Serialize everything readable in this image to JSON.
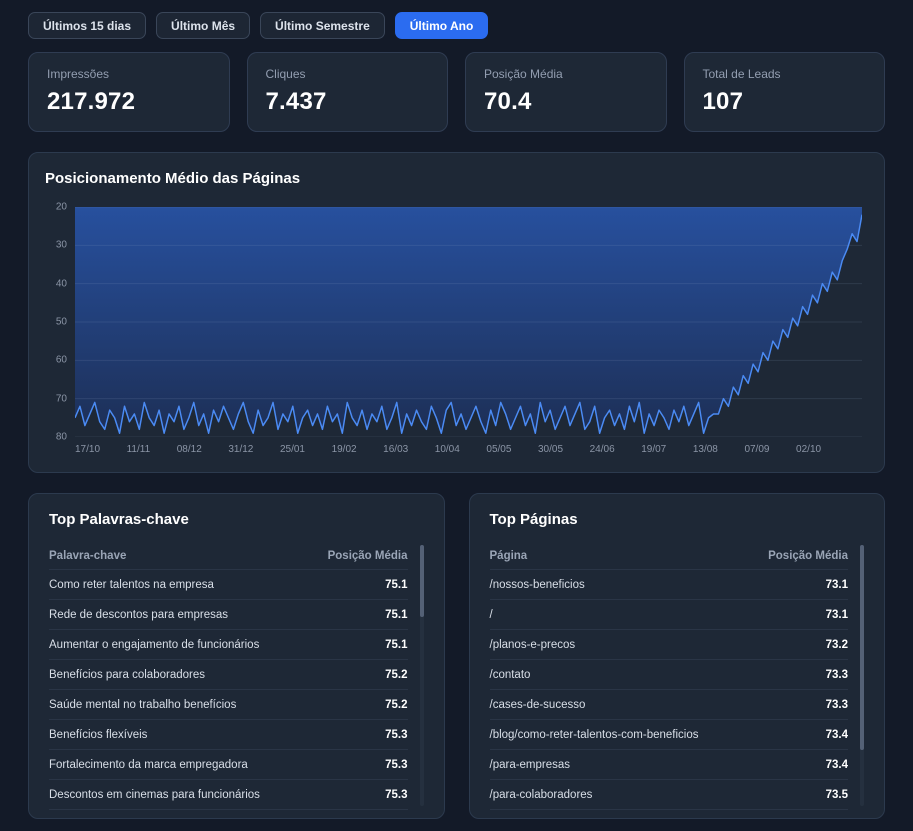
{
  "filters": {
    "items": [
      {
        "label": "Últimos 15 dias",
        "active": false
      },
      {
        "label": "Último Mês",
        "active": false
      },
      {
        "label": "Último Semestre",
        "active": false
      },
      {
        "label": "Último Ano",
        "active": true
      }
    ]
  },
  "stats": [
    {
      "label": "Impressões",
      "value": "217.972"
    },
    {
      "label": "Cliques",
      "value": "7.437"
    },
    {
      "label": "Posição Média",
      "value": "70.4"
    },
    {
      "label": "Total de Leads",
      "value": "107"
    }
  ],
  "chart_data": {
    "type": "area",
    "title": "Posicionamento Médio das Páginas",
    "y_inverted": true,
    "ylim": [
      20,
      80
    ],
    "y_ticks": [
      20,
      30,
      40,
      50,
      60,
      70,
      80
    ],
    "x_ticks": [
      "17/10",
      "11/11",
      "08/12",
      "31/12",
      "25/01",
      "19/02",
      "16/03",
      "10/04",
      "05/05",
      "30/05",
      "24/06",
      "19/07",
      "13/08",
      "07/09",
      "02/10"
    ],
    "grid": true,
    "line_color": "#4b8bf4",
    "fill_top_color": "#27509e",
    "fill_bottom_color": "#1d2f56",
    "values": [
      75,
      72,
      77,
      74,
      71,
      76,
      78,
      73,
      75,
      79,
      72,
      76,
      74,
      78,
      71,
      75,
      77,
      73,
      79,
      74,
      76,
      72,
      78,
      75,
      71,
      77,
      74,
      79,
      73,
      76,
      72,
      75,
      78,
      74,
      71,
      76,
      79,
      73,
      77,
      75,
      71,
      78,
      74,
      76,
      72,
      79,
      75,
      73,
      77,
      74,
      78,
      72,
      76,
      74,
      79,
      71,
      75,
      77,
      73,
      78,
      74,
      76,
      72,
      78,
      75,
      71,
      79,
      74,
      77,
      73,
      76,
      78,
      72,
      75,
      79,
      73,
      71,
      77,
      74,
      78,
      75,
      72,
      76,
      79,
      73,
      77,
      71,
      74,
      78,
      75,
      72,
      77,
      74,
      79,
      71,
      76,
      73,
      78,
      75,
      72,
      77,
      74,
      71,
      78,
      76,
      72,
      79,
      75,
      73,
      77,
      74,
      78,
      72,
      76,
      71,
      79,
      74,
      77,
      73,
      75,
      78,
      73,
      76,
      72,
      77,
      74,
      71,
      79,
      75,
      74,
      74,
      70,
      72,
      67,
      69,
      64,
      66,
      61,
      63,
      58,
      60,
      55,
      57,
      52,
      54,
      49,
      51,
      46,
      48,
      43,
      45,
      40,
      42,
      37,
      39,
      34,
      31,
      27,
      29,
      22
    ]
  },
  "tables": {
    "keywords": {
      "title": "Top Palavras-chave",
      "columns": [
        "Palavra-chave",
        "Posição Média"
      ],
      "rows": [
        [
          "Como reter talentos na empresa",
          "75.1"
        ],
        [
          "Rede de descontos para empresas",
          "75.1"
        ],
        [
          "Aumentar o engajamento de funcionários",
          "75.1"
        ],
        [
          "Benefícios para colaboradores",
          "75.2"
        ],
        [
          "Saúde mental no trabalho benefícios",
          "75.2"
        ],
        [
          "Benefícios flexíveis",
          "75.3"
        ],
        [
          "Fortalecimento da marca empregadora",
          "75.3"
        ],
        [
          "Descontos em cinemas para funcionários",
          "75.3"
        ]
      ]
    },
    "pages": {
      "title": "Top Páginas",
      "columns": [
        "Página",
        "Posição Média"
      ],
      "rows": [
        [
          "/nossos-beneficios",
          "73.1"
        ],
        [
          "/",
          "73.1"
        ],
        [
          "/planos-e-precos",
          "73.2"
        ],
        [
          "/contato",
          "73.3"
        ],
        [
          "/cases-de-sucesso",
          "73.3"
        ],
        [
          "/blog/como-reter-talentos-com-beneficios",
          "73.4"
        ],
        [
          "/para-empresas",
          "73.4"
        ],
        [
          "/para-colaboradores",
          "73.5"
        ]
      ]
    }
  },
  "colors": {
    "page_bg": "#131a28",
    "panel_bg": "#1e2836",
    "accent_blue": "#2b6cf0",
    "line_blue": "#4b8bf4"
  }
}
